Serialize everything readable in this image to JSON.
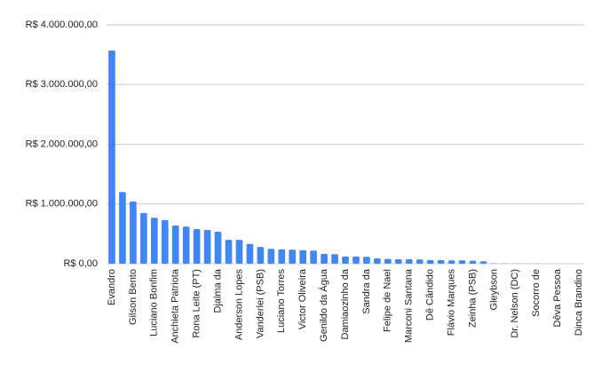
{
  "chart_data": {
    "type": "bar",
    "color": "#4285f4",
    "grid": true,
    "categories": [
      "Evandro",
      null,
      "Gilson Bento",
      null,
      "Luciano Bonfim",
      null,
      "Anchieta Patriota",
      null,
      "Rona Leite (PT)",
      null,
      "Djalma da",
      null,
      "Anderson Lopes",
      null,
      "Vanderlei (PSB)",
      null,
      "Luciano Torres",
      null,
      "Victor Oliveira",
      null,
      "Genildo da Água",
      null,
      "Damiaozinho da",
      null,
      "Sandra da",
      null,
      "Felipe de Nael",
      null,
      "Marconi Santana",
      null,
      "Dê Cândido",
      null,
      "Flávio Marques",
      null,
      "Zeinha (PSB)",
      null,
      "Gleybson",
      null,
      "Dr. Nelson (DC)",
      null,
      "Socorro de",
      null,
      "Dêva Pessoa",
      null,
      "Dinca Brandino"
    ],
    "values": [
      3570000,
      1200000,
      1040000,
      850000,
      770000,
      730000,
      640000,
      620000,
      580000,
      565000,
      535000,
      400000,
      400000,
      330000,
      280000,
      250000,
      240000,
      235000,
      225000,
      220000,
      165000,
      160000,
      120000,
      120000,
      115000,
      90000,
      80000,
      75000,
      75000,
      70000,
      60000,
      60000,
      55000,
      55000,
      50000,
      40000,
      5000,
      3000,
      2000,
      1500,
      1000,
      800,
      500,
      300,
      200
    ],
    "ylim": [
      0,
      4000000
    ],
    "yticks": [
      {
        "value": 0,
        "label": "R$ 0,00"
      },
      {
        "value": 1000000,
        "label": "R$ 1.000.000,00"
      },
      {
        "value": 2000000,
        "label": "R$ 2.000.000,00"
      },
      {
        "value": 3000000,
        "label": "R$ 3.000.000,00"
      },
      {
        "value": 4000000,
        "label": "R$ 4.000.000,00"
      }
    ]
  }
}
